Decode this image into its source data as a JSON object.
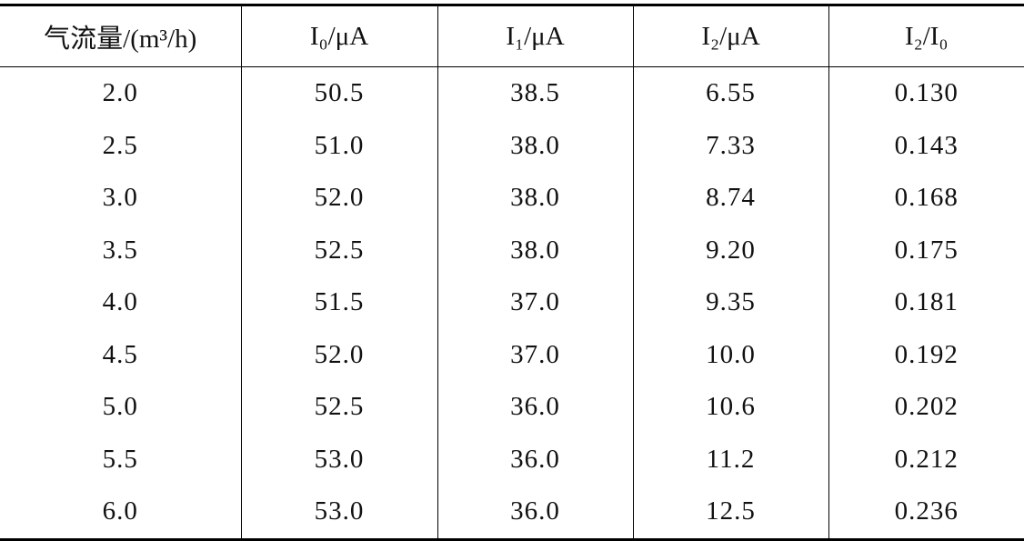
{
  "table": {
    "header": [
      "气流量/(m³/h)",
      "I₀/μA",
      "I₁/μA",
      "I₂/μA",
      "I₂/I₀"
    ],
    "rows": [
      [
        "2.0",
        "50.5",
        "38.5",
        "6.55",
        "0.130"
      ],
      [
        "2.5",
        "51.0",
        "38.0",
        "7.33",
        "0.143"
      ],
      [
        "3.0",
        "52.0",
        "38.0",
        "8.74",
        "0.168"
      ],
      [
        "3.5",
        "52.5",
        "38.0",
        "9.20",
        "0.175"
      ],
      [
        "4.0",
        "51.5",
        "37.0",
        "9.35",
        "0.181"
      ],
      [
        "4.5",
        "52.0",
        "37.0",
        "10.0",
        "0.192"
      ],
      [
        "5.0",
        "52.5",
        "36.0",
        "10.6",
        "0.202"
      ],
      [
        "5.5",
        "53.0",
        "36.0",
        "11.2",
        "0.212"
      ],
      [
        "6.0",
        "53.0",
        "36.0",
        "12.5",
        "0.236"
      ]
    ]
  }
}
